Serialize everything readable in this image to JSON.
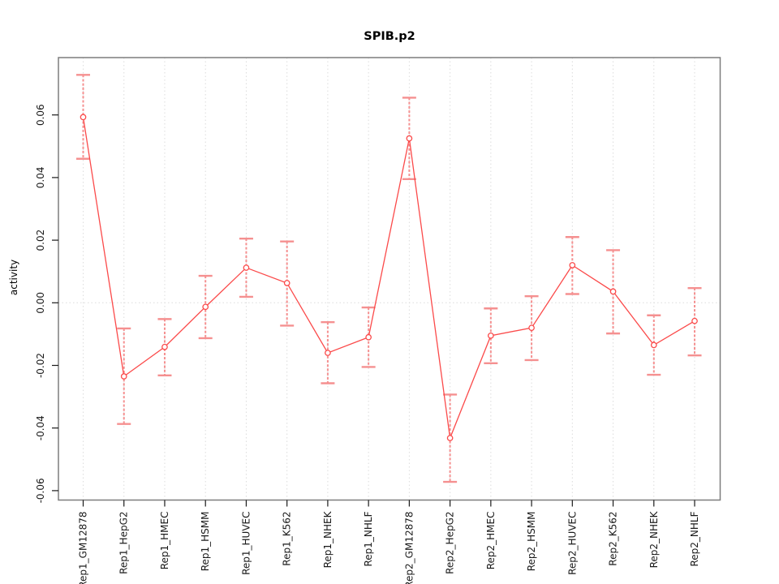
{
  "title": "SPIB.p2",
  "chart_data": {
    "type": "line",
    "title": "SPIB.p2",
    "xlabel": "",
    "ylabel": "activity",
    "legend": null,
    "grid": {
      "vertical_gridlines": true,
      "horizontal_gridline_at_zero": true,
      "style": "dotted"
    },
    "marker": "open-circle",
    "error_bars": true,
    "categories": [
      "Rep1_GM12878",
      "Rep1_HepG2",
      "Rep1_HMEC",
      "Rep1_HSMM",
      "Rep1_HUVEC",
      "Rep1_K562",
      "Rep1_NHEK",
      "Rep1_NHLF",
      "Rep2_GM12878",
      "Rep2_HepG2",
      "Rep2_HMEC",
      "Rep2_HSMM",
      "Rep2_HUVEC",
      "Rep2_K562",
      "Rep2_NHEK",
      "Rep2_NHLF"
    ],
    "series": [
      {
        "name": "activity",
        "values": [
          0.0593,
          -0.0235,
          -0.0141,
          -0.0013,
          0.0112,
          0.0063,
          -0.016,
          -0.011,
          0.0525,
          -0.0432,
          -0.0105,
          -0.008,
          0.012,
          0.0036,
          -0.0135,
          -0.0058
        ],
        "error_low": [
          0.046,
          -0.0387,
          -0.0232,
          -0.0113,
          0.0019,
          -0.0073,
          -0.0257,
          -0.0205,
          0.0395,
          -0.0572,
          -0.0193,
          -0.0183,
          0.0028,
          -0.0098,
          -0.023,
          -0.0168
        ],
        "error_high": [
          0.0728,
          -0.0082,
          -0.0052,
          0.0086,
          0.0205,
          0.0196,
          -0.0062,
          -0.0015,
          0.0655,
          -0.0293,
          -0.0018,
          0.0021,
          0.021,
          0.0168,
          -0.004,
          0.0047
        ]
      }
    ],
    "yticks": [
      0.06,
      0.04,
      0.02,
      0.0,
      -0.02,
      -0.04,
      -0.06
    ],
    "ytick_labels": [
      "0.06",
      "0.04",
      "0.02",
      "0.00",
      "-0.02",
      "-0.04",
      "-0.06"
    ],
    "ylim": [
      -0.0632,
      0.0784
    ],
    "colors": {
      "line": "#fb4a4a",
      "marker_stroke": "#fb4a4a",
      "marker_fill": "#ffffff",
      "error_bar": "#f59090",
      "gridline": "#dcdcdc",
      "box": "#7d7d7d",
      "tick": "#1a1a1a",
      "text": "#000000",
      "background": "#ffffff"
    }
  }
}
